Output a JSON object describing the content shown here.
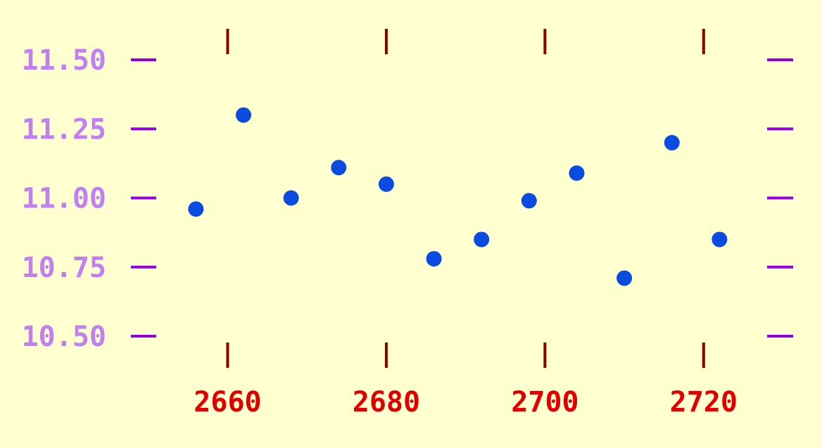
{
  "colors": {
    "background": "#ffffd0",
    "points": "#0a4ce0",
    "y_ticks": "#9400e0",
    "y_tick_labels": "#c080f0",
    "x_ticks": "#8b0000",
    "x_tick_labels": "#e00000"
  },
  "chart_data": {
    "type": "scatter",
    "title": "",
    "xlabel": "",
    "ylabel": "",
    "xlim": [
      2651,
      2728
    ],
    "ylim": [
      10.5,
      11.5
    ],
    "x_ticks": [
      2660,
      2680,
      2700,
      2720
    ],
    "x_tick_labels": [
      "2660",
      "2680",
      "2700",
      "2720"
    ],
    "y_ticks": [
      10.5,
      10.75,
      11.0,
      11.25,
      11.5
    ],
    "y_tick_labels": [
      "10.50",
      "10.75",
      "11.00",
      "11.25",
      "11.50"
    ],
    "grid": false,
    "legend": "none",
    "series": [
      {
        "x": [
          2656,
          2662,
          2668,
          2674,
          2680,
          2686,
          2692,
          2698,
          2704,
          2710,
          2716,
          2722
        ],
        "y": [
          10.96,
          11.3,
          11.0,
          11.11,
          11.05,
          10.78,
          10.85,
          10.99,
          11.09,
          10.71,
          11.2,
          10.85
        ]
      }
    ]
  }
}
